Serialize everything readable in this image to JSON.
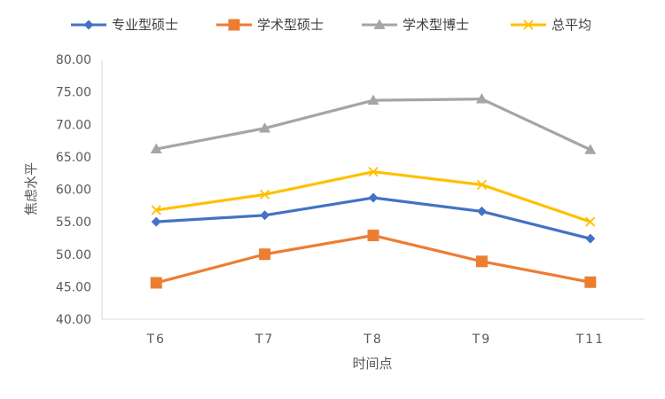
{
  "chart_data": {
    "type": "line",
    "categories": [
      "T6",
      "T7",
      "T8",
      "T9",
      "T11"
    ],
    "series": [
      {
        "name": "专业型硕士",
        "values": [
          55.0,
          56.0,
          58.7,
          56.6,
          52.4
        ],
        "color": "#4472C4",
        "marker": "diamond"
      },
      {
        "name": "学术型硕士",
        "values": [
          45.6,
          50.0,
          52.9,
          48.9,
          45.7
        ],
        "color": "#ED7D31",
        "marker": "square"
      },
      {
        "name": "学术型博士",
        "values": [
          66.2,
          69.4,
          73.7,
          73.9,
          66.1
        ],
        "color": "#A5A5A5",
        "marker": "triangle"
      },
      {
        "name": "总平均",
        "values": [
          56.8,
          59.2,
          62.7,
          60.7,
          55.0
        ],
        "color": "#FFC000",
        "marker": "x"
      }
    ],
    "xlabel": "时间点",
    "ylabel": "焦虑水平",
    "ylim": [
      40,
      80
    ],
    "yticks": [
      "40.00",
      "45.00",
      "50.00",
      "55.00",
      "60.00",
      "65.00",
      "70.00",
      "75.00",
      "80.00"
    ],
    "legend_position": "top",
    "grid": false
  }
}
